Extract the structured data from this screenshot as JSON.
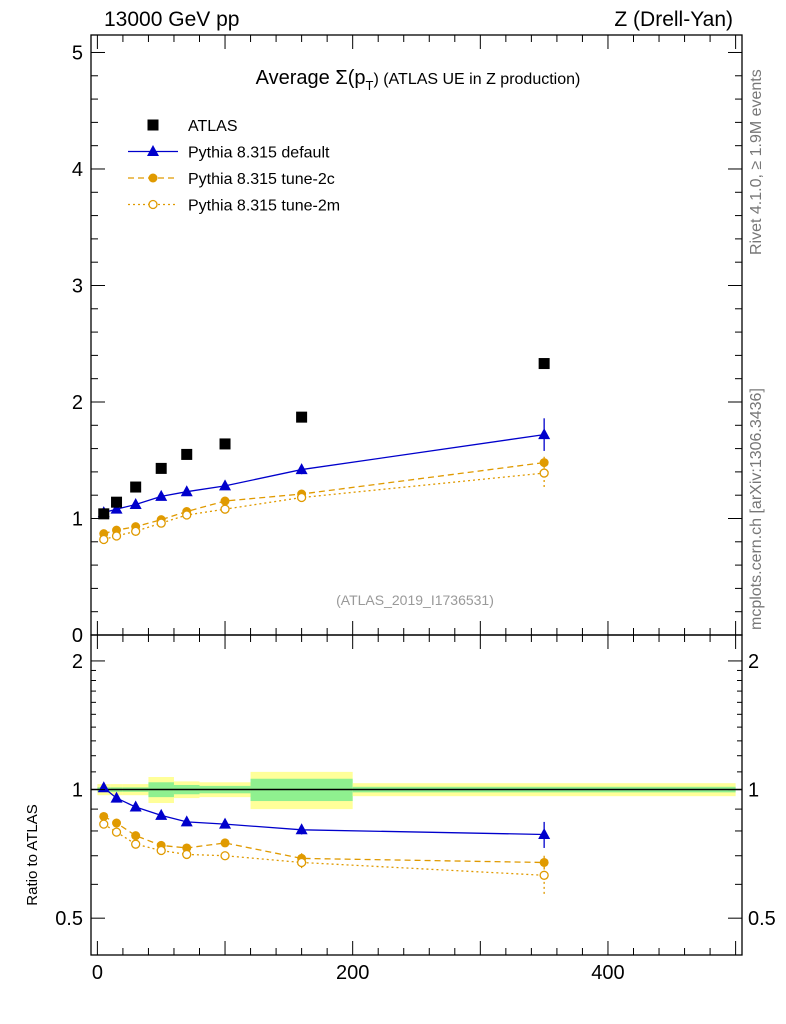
{
  "header": {
    "left": "13000 GeV pp",
    "right": "Z (Drell-Yan)"
  },
  "side_labels": {
    "rivet": "Rivet 4.1.0, ≥ 1.9M events",
    "mcplots": "mcplots.cern.ch [arXiv:1306.3436]"
  },
  "chart_data": [
    {
      "type": "scatter",
      "panel": "main",
      "title": "Average Σ(p_T) (ATLAS UE in Z production)",
      "title_prefix": "Average ",
      "title_sigma": "Σ(p",
      "title_sub": "T",
      "title_suffix": ") (ATLAS UE in Z production)",
      "watermark": "(ATLAS_2019_I1736531)",
      "xlim": [
        -5,
        505
      ],
      "ylim": [
        0,
        5.15
      ],
      "y_ticks": [
        0,
        1,
        2,
        3,
        4,
        5
      ],
      "y_tick_labels": [
        "0",
        "1",
        "2",
        "3",
        "4",
        "5"
      ],
      "x": [
        5,
        15,
        30,
        50,
        70,
        100,
        160,
        350
      ],
      "series": [
        {
          "name": "ATLAS",
          "style": "data",
          "color": "#000000",
          "values": [
            1.04,
            1.14,
            1.27,
            1.43,
            1.55,
            1.64,
            1.87,
            2.33
          ]
        },
        {
          "name": "Pythia 8.315 default",
          "style": "triangle",
          "color": "#0000cc",
          "values": [
            1.05,
            1.08,
            1.12,
            1.19,
            1.23,
            1.28,
            1.42,
            1.72
          ],
          "err": [
            0.01,
            0.01,
            0.01,
            0.01,
            0.01,
            0.015,
            0.04,
            0.14
          ]
        },
        {
          "name": "Pythia 8.315 tune-2c",
          "style": "dashed",
          "color": "#e09a00",
          "values": [
            0.87,
            0.9,
            0.93,
            0.99,
            1.06,
            1.15,
            1.21,
            1.48
          ],
          "err": [
            0.01,
            0.01,
            0.01,
            0.01,
            0.01,
            0.015,
            0.03,
            0.05
          ]
        },
        {
          "name": "Pythia 8.315 tune-2m",
          "style": "dotted",
          "color": "#e09a00",
          "values": [
            0.82,
            0.85,
            0.89,
            0.96,
            1.03,
            1.08,
            1.18,
            1.39
          ],
          "err": [
            0.01,
            0.01,
            0.01,
            0.01,
            0.01,
            0.015,
            0.03,
            0.12
          ]
        }
      ]
    },
    {
      "type": "scatter",
      "panel": "ratio",
      "ylabel": "Ratio to ATLAS",
      "y_scale": "log",
      "xlim": [
        -5,
        505
      ],
      "ylim": [
        0.41,
        2.3
      ],
      "y_ticks": [
        0.5,
        1,
        2
      ],
      "y_tick_labels": [
        "0.5",
        "1",
        "2"
      ],
      "x_ticks": [
        0,
        200,
        400
      ],
      "x_tick_labels": [
        "0",
        "200",
        "400"
      ],
      "bands": {
        "edges": [
          0,
          10,
          20,
          40,
          60,
          80,
          120,
          200,
          500
        ],
        "stat_frac": [
          0.012,
          0.012,
          0.012,
          0.04,
          0.025,
          0.02,
          0.06,
          0.015
        ],
        "total_frac": [
          0.03,
          0.03,
          0.03,
          0.07,
          0.045,
          0.04,
          0.1,
          0.035
        ],
        "stat_color": "#8ff08f",
        "total_color": "#ffff99"
      },
      "x": [
        5,
        15,
        30,
        50,
        70,
        100,
        160,
        350
      ],
      "series": [
        {
          "name": "Pythia 8.315 default",
          "style": "triangle",
          "color": "#0000cc",
          "values": [
            1.01,
            0.955,
            0.91,
            0.87,
            0.84,
            0.83,
            0.805,
            0.785
          ],
          "err": [
            0.01,
            0.01,
            0.01,
            0.01,
            0.01,
            0.01,
            0.02,
            0.055
          ]
        },
        {
          "name": "Pythia 8.315 tune-2c",
          "style": "dashed",
          "color": "#e09a00",
          "values": [
            0.865,
            0.835,
            0.78,
            0.74,
            0.73,
            0.75,
            0.69,
            0.675
          ],
          "err": [
            0.01,
            0.01,
            0.01,
            0.01,
            0.01,
            0.01,
            0.02,
            0.025
          ]
        },
        {
          "name": "Pythia 8.315 tune-2m",
          "style": "dotted",
          "color": "#e09a00",
          "values": [
            0.83,
            0.795,
            0.745,
            0.72,
            0.705,
            0.7,
            0.675,
            0.63
          ],
          "err": [
            0.01,
            0.01,
            0.01,
            0.01,
            0.01,
            0.01,
            0.02,
            0.06
          ]
        }
      ]
    }
  ]
}
